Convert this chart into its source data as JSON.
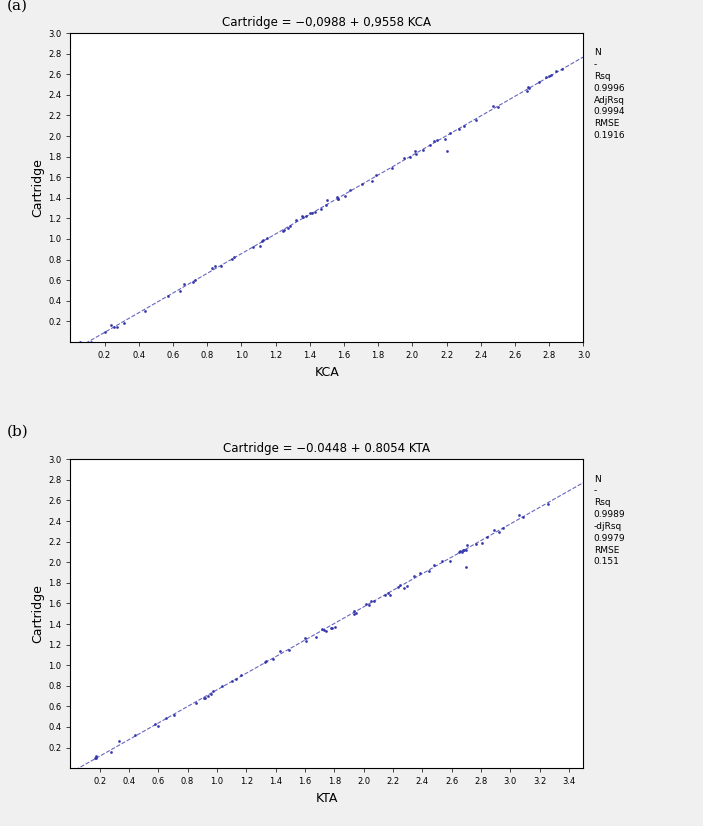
{
  "plot_a": {
    "title": "Cartridge = −0,0988 + 0,9558 KCA",
    "xlabel": "KCA",
    "ylabel": "Cartridge",
    "intercept": -0.0988,
    "slope": 0.9558,
    "xmin": 0.0,
    "xmax": 3.0,
    "ymin": 0.0,
    "ymax": 3.0,
    "xtick_values": [
      0.2,
      0.4,
      0.6,
      0.8,
      1.0,
      1.2,
      1.4,
      1.6,
      1.8,
      2.0,
      2.2,
      2.4,
      2.6,
      2.8,
      3.0
    ],
    "ytick_values": [
      0.2,
      0.4,
      0.6,
      0.8,
      1.0,
      1.2,
      1.4,
      1.6,
      1.8,
      2.0,
      2.2,
      2.4,
      2.6,
      2.8,
      3.0
    ],
    "stats_N": "N",
    "stats_N_val": "-",
    "stats_rsq_label": "Rsq",
    "stats_rsq": "0.9996",
    "stats_adjrsq_label": "AdjRsq",
    "stats_adjrsq": "0.9994",
    "stats_rmse_label": "RMSE",
    "stats_rmse": "0.1916",
    "outlier_x": 2.2,
    "outlier_y": 1.85,
    "n_points": 70,
    "noise": 0.018,
    "label": "(a)"
  },
  "plot_b": {
    "title": "Cartridge = −0.0448 + 0.8054 KTA",
    "xlabel": "KTA",
    "ylabel": "Cartridge",
    "intercept": -0.0448,
    "slope": 0.8054,
    "xmin": 0.0,
    "xmax": 3.5,
    "ymin": 0.0,
    "ymax": 3.0,
    "xtick_values": [
      0.2,
      0.4,
      0.6,
      0.8,
      1.0,
      1.2,
      1.4,
      1.6,
      1.8,
      2.0,
      2.2,
      2.4,
      2.6,
      2.8,
      3.0,
      3.2,
      3.4
    ],
    "ytick_values": [
      0.2,
      0.4,
      0.6,
      0.8,
      1.0,
      1.2,
      1.4,
      1.6,
      1.8,
      2.0,
      2.2,
      2.4,
      2.6,
      2.8,
      3.0
    ],
    "stats_N": "N",
    "stats_N_val": "-",
    "stats_rsq_label": "Rsq",
    "stats_rsq": "0.9989",
    "stats_adjrsq_label": "-djRsq",
    "stats_adjrsq": "0.9979",
    "stats_rmse_label": "RMSE",
    "stats_rmse": "0.151",
    "outlier_x": 2.7,
    "outlier_y": 1.95,
    "n_points": 70,
    "noise": 0.018,
    "label": "(b)"
  },
  "line_color": "#3333AA",
  "dot_color": "#3333AA",
  "bg_color": "#f0f0f0",
  "plot_bg": "#ffffff",
  "font_color": "#000000",
  "title_fontsize": 8.5,
  "label_fontsize": 9,
  "tick_fontsize": 6,
  "stats_fontsize": 6.5
}
